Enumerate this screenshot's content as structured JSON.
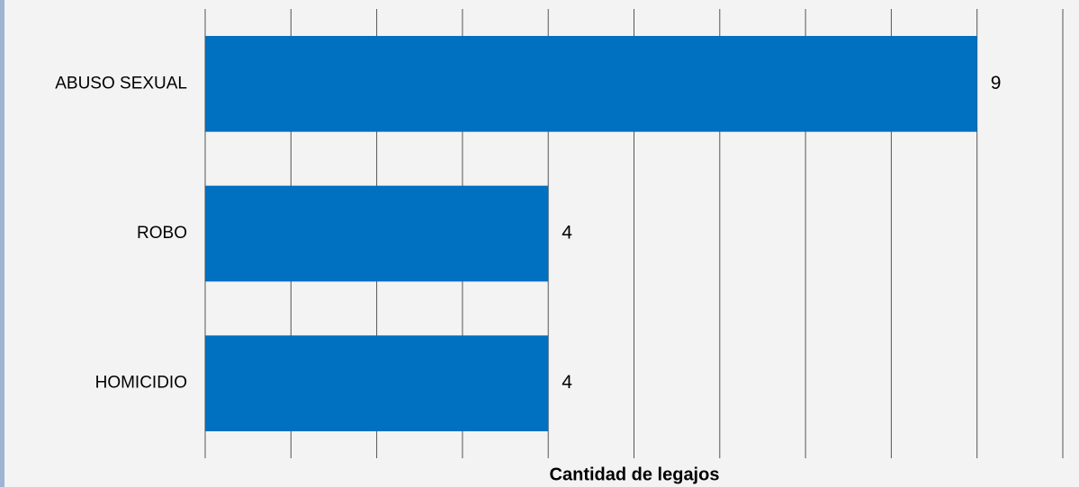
{
  "chart_data": {
    "type": "barh",
    "x_label": "Cantidad de legajos",
    "categories": [
      "ABUSO SEXUAL",
      "ROBO",
      "HOMICIDIO"
    ],
    "values": [
      9,
      4,
      4
    ],
    "color": "#0070c0",
    "xlim": [
      0,
      10
    ],
    "xticks": [
      0,
      1,
      2,
      3,
      4,
      5,
      6,
      7,
      8,
      9,
      10
    ],
    "grid": true
  }
}
